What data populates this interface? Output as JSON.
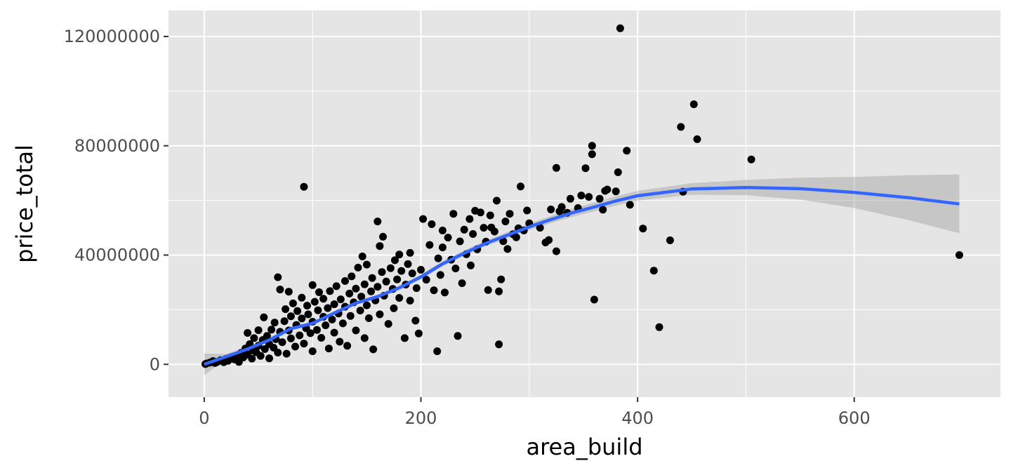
{
  "chart_data": {
    "type": "scatter",
    "title": "",
    "xlabel": "area_build",
    "ylabel": "price_total",
    "xlim": [
      -33,
      735
    ],
    "ylim": [
      -12000000,
      129500000
    ],
    "x_ticks": [
      0,
      200,
      400,
      600
    ],
    "x_tick_labels": [
      "0",
      "200",
      "400",
      "600"
    ],
    "y_ticks": [
      0,
      40000000,
      80000000,
      120000000
    ],
    "y_tick_labels": [
      "0",
      "40000000",
      "80000000",
      "120000000"
    ],
    "grid": true,
    "legend": "none",
    "colors": {
      "panel_background": "#e5e5e5",
      "grid": "#ffffff",
      "points": "#000000",
      "smooth_line": "#3366ff",
      "confidence_band": "#999999"
    },
    "series": [
      {
        "type": "scatter",
        "points": [
          [
            1,
            100000
          ],
          [
            2,
            300000
          ],
          [
            5,
            600000
          ],
          [
            8,
            1200000
          ],
          [
            10,
            500000
          ],
          [
            12,
            900000
          ],
          [
            15,
            1500000
          ],
          [
            18,
            800000
          ],
          [
            20,
            2000000
          ],
          [
            22,
            1300000
          ],
          [
            25,
            2600000
          ],
          [
            28,
            1800000
          ],
          [
            30,
            3200000
          ],
          [
            32,
            900000
          ],
          [
            34,
            4200000
          ],
          [
            36,
            2500000
          ],
          [
            38,
            5800000
          ],
          [
            40,
            3600000
          ],
          [
            40,
            11500000
          ],
          [
            42,
            7400000
          ],
          [
            44,
            2100000
          ],
          [
            45,
            5100000
          ],
          [
            46,
            9600000
          ],
          [
            48,
            4400000
          ],
          [
            50,
            6800000
          ],
          [
            50,
            12500000
          ],
          [
            52,
            3100000
          ],
          [
            54,
            8900000
          ],
          [
            55,
            17200000
          ],
          [
            56,
            5600000
          ],
          [
            58,
            10400000
          ],
          [
            60,
            7400000
          ],
          [
            60,
            2200000
          ],
          [
            62,
            12700000
          ],
          [
            64,
            6100000
          ],
          [
            65,
            15300000
          ],
          [
            66,
            9200000
          ],
          [
            68,
            31900000
          ],
          [
            68,
            4300000
          ],
          [
            70,
            11900000
          ],
          [
            70,
            27400000
          ],
          [
            72,
            8100000
          ],
          [
            74,
            15800000
          ],
          [
            75,
            20200000
          ],
          [
            76,
            3900000
          ],
          [
            78,
            26600000
          ],
          [
            78,
            12400000
          ],
          [
            80,
            9500000
          ],
          [
            80,
            17600000
          ],
          [
            82,
            22300000
          ],
          [
            84,
            6500000
          ],
          [
            85,
            14400000
          ],
          [
            86,
            19500000
          ],
          [
            88,
            10600000
          ],
          [
            90,
            16800000
          ],
          [
            90,
            24400000
          ],
          [
            92,
            65000000
          ],
          [
            92,
            7600000
          ],
          [
            94,
            13200000
          ],
          [
            95,
            21500000
          ],
          [
            96,
            18300000
          ],
          [
            98,
            11400000
          ],
          [
            100,
            29000000
          ],
          [
            100,
            15600000
          ],
          [
            100,
            4800000
          ],
          [
            102,
            22900000
          ],
          [
            104,
            12600000
          ],
          [
            105,
            19800000
          ],
          [
            106,
            26400000
          ],
          [
            108,
            9700000
          ],
          [
            110,
            17400000
          ],
          [
            110,
            24000000
          ],
          [
            112,
            14300000
          ],
          [
            114,
            20600000
          ],
          [
            115,
            5800000
          ],
          [
            116,
            26800000
          ],
          [
            118,
            16400000
          ],
          [
            120,
            22000000
          ],
          [
            120,
            11600000
          ],
          [
            122,
            28600000
          ],
          [
            124,
            18600000
          ],
          [
            125,
            8300000
          ],
          [
            126,
            23800000
          ],
          [
            128,
            15000000
          ],
          [
            130,
            30500000
          ],
          [
            130,
            21100000
          ],
          [
            132,
            6800000
          ],
          [
            134,
            25900000
          ],
          [
            135,
            17700000
          ],
          [
            136,
            32200000
          ],
          [
            138,
            22700000
          ],
          [
            140,
            12400000
          ],
          [
            140,
            27700000
          ],
          [
            142,
            35400000
          ],
          [
            144,
            19700000
          ],
          [
            145,
            24800000
          ],
          [
            146,
            39500000
          ],
          [
            148,
            9600000
          ],
          [
            148,
            29300000
          ],
          [
            150,
            21600000
          ],
          [
            150,
            36500000
          ],
          [
            152,
            16900000
          ],
          [
            154,
            26700000
          ],
          [
            155,
            31600000
          ],
          [
            156,
            5500000
          ],
          [
            158,
            23400000
          ],
          [
            160,
            52300000
          ],
          [
            160,
            28400000
          ],
          [
            162,
            43300000
          ],
          [
            162,
            18300000
          ],
          [
            164,
            33800000
          ],
          [
            165,
            46700000
          ],
          [
            166,
            25100000
          ],
          [
            168,
            30300000
          ],
          [
            170,
            14800000
          ],
          [
            172,
            35200000
          ],
          [
            174,
            27600000
          ],
          [
            175,
            20500000
          ],
          [
            176,
            38100000
          ],
          [
            178,
            31100000
          ],
          [
            180,
            40200000
          ],
          [
            180,
            24300000
          ],
          [
            182,
            34200000
          ],
          [
            185,
            9600000
          ],
          [
            186,
            29200000
          ],
          [
            188,
            36700000
          ],
          [
            190,
            40800000
          ],
          [
            190,
            23300000
          ],
          [
            192,
            33300000
          ],
          [
            195,
            16000000
          ],
          [
            196,
            27900000
          ],
          [
            198,
            11300000
          ],
          [
            200,
            34600000
          ],
          [
            202,
            53200000
          ],
          [
            205,
            31000000
          ],
          [
            208,
            43700000
          ],
          [
            210,
            51300000
          ],
          [
            212,
            27100000
          ],
          [
            215,
            4800000
          ],
          [
            216,
            38800000
          ],
          [
            218,
            32700000
          ],
          [
            220,
            49000000
          ],
          [
            220,
            42800000
          ],
          [
            222,
            26300000
          ],
          [
            225,
            46400000
          ],
          [
            228,
            38300000
          ],
          [
            230,
            55100000
          ],
          [
            232,
            35100000
          ],
          [
            234,
            10400000
          ],
          [
            236,
            45000000
          ],
          [
            238,
            29700000
          ],
          [
            240,
            49300000
          ],
          [
            242,
            40300000
          ],
          [
            245,
            53200000
          ],
          [
            246,
            36200000
          ],
          [
            248,
            47700000
          ],
          [
            250,
            56200000
          ],
          [
            252,
            42100000
          ],
          [
            255,
            55600000
          ],
          [
            258,
            50000000
          ],
          [
            260,
            44900000
          ],
          [
            262,
            27200000
          ],
          [
            264,
            54500000
          ],
          [
            265,
            50100000
          ],
          [
            268,
            48600000
          ],
          [
            270,
            59900000
          ],
          [
            272,
            7300000
          ],
          [
            272,
            26700000
          ],
          [
            274,
            31100000
          ],
          [
            276,
            45100000
          ],
          [
            278,
            52300000
          ],
          [
            280,
            42200000
          ],
          [
            282,
            55100000
          ],
          [
            285,
            47600000
          ],
          [
            288,
            46500000
          ],
          [
            290,
            49800000
          ],
          [
            292,
            65100000
          ],
          [
            295,
            49000000
          ],
          [
            298,
            56300000
          ],
          [
            300,
            51600000
          ],
          [
            310,
            50000000
          ],
          [
            315,
            44600000
          ],
          [
            318,
            45500000
          ],
          [
            320,
            56700000
          ],
          [
            325,
            71900000
          ],
          [
            325,
            41400000
          ],
          [
            328,
            56000000
          ],
          [
            330,
            57600000
          ],
          [
            335,
            55500000
          ],
          [
            338,
            60600000
          ],
          [
            345,
            57200000
          ],
          [
            348,
            61800000
          ],
          [
            352,
            71800000
          ],
          [
            355,
            61300000
          ],
          [
            358,
            80000000
          ],
          [
            358,
            76900000
          ],
          [
            360,
            23700000
          ],
          [
            365,
            60600000
          ],
          [
            368,
            56600000
          ],
          [
            370,
            63500000
          ],
          [
            372,
            64000000
          ],
          [
            380,
            63300000
          ],
          [
            382,
            70300000
          ],
          [
            384,
            123000000
          ],
          [
            390,
            78200000
          ],
          [
            393,
            58400000
          ],
          [
            405,
            49700000
          ],
          [
            415,
            34300000
          ],
          [
            420,
            13600000
          ],
          [
            430,
            45400000
          ],
          [
            440,
            86900000
          ],
          [
            442,
            63200000
          ],
          [
            452,
            95200000
          ],
          [
            455,
            82400000
          ],
          [
            505,
            75000000
          ],
          [
            697,
            40000000
          ]
        ]
      },
      {
        "type": "smooth",
        "x": [
          0,
          20,
          40,
          60,
          80,
          100,
          120,
          140,
          160,
          180,
          200,
          220,
          240,
          260,
          280,
          300,
          320,
          340,
          360,
          380,
          400,
          450,
          500,
          550,
          600,
          650,
          697
        ],
        "y": [
          0,
          2800000,
          5600000,
          8900000,
          13100000,
          15000000,
          18800000,
          22400000,
          24800000,
          28000000,
          32000000,
          36800000,
          40700000,
          44300000,
          47300000,
          50300000,
          53000000,
          55500000,
          57600000,
          59800000,
          61700000,
          64200000,
          64700000,
          64300000,
          62900000,
          61000000,
          58700000
        ],
        "band_upper": [
          4000000,
          3800000,
          6300000,
          9500000,
          13700000,
          15700000,
          19400000,
          23000000,
          25500000,
          28800000,
          32900000,
          37700000,
          41700000,
          45300000,
          48400000,
          51500000,
          54300000,
          57000000,
          59200000,
          61500000,
          63500000,
          66300000,
          67500000,
          68300000,
          68600000,
          69200000,
          69500000
        ],
        "band_lower": [
          -4000000,
          1800000,
          4900000,
          8300000,
          12500000,
          14300000,
          18200000,
          21800000,
          24100000,
          27200000,
          31100000,
          35900000,
          39700000,
          43300000,
          46200000,
          49100000,
          51700000,
          54000000,
          56000000,
          58100000,
          59900000,
          62100000,
          61900000,
          60300000,
          57200000,
          52800000,
          48000000
        ]
      }
    ]
  }
}
